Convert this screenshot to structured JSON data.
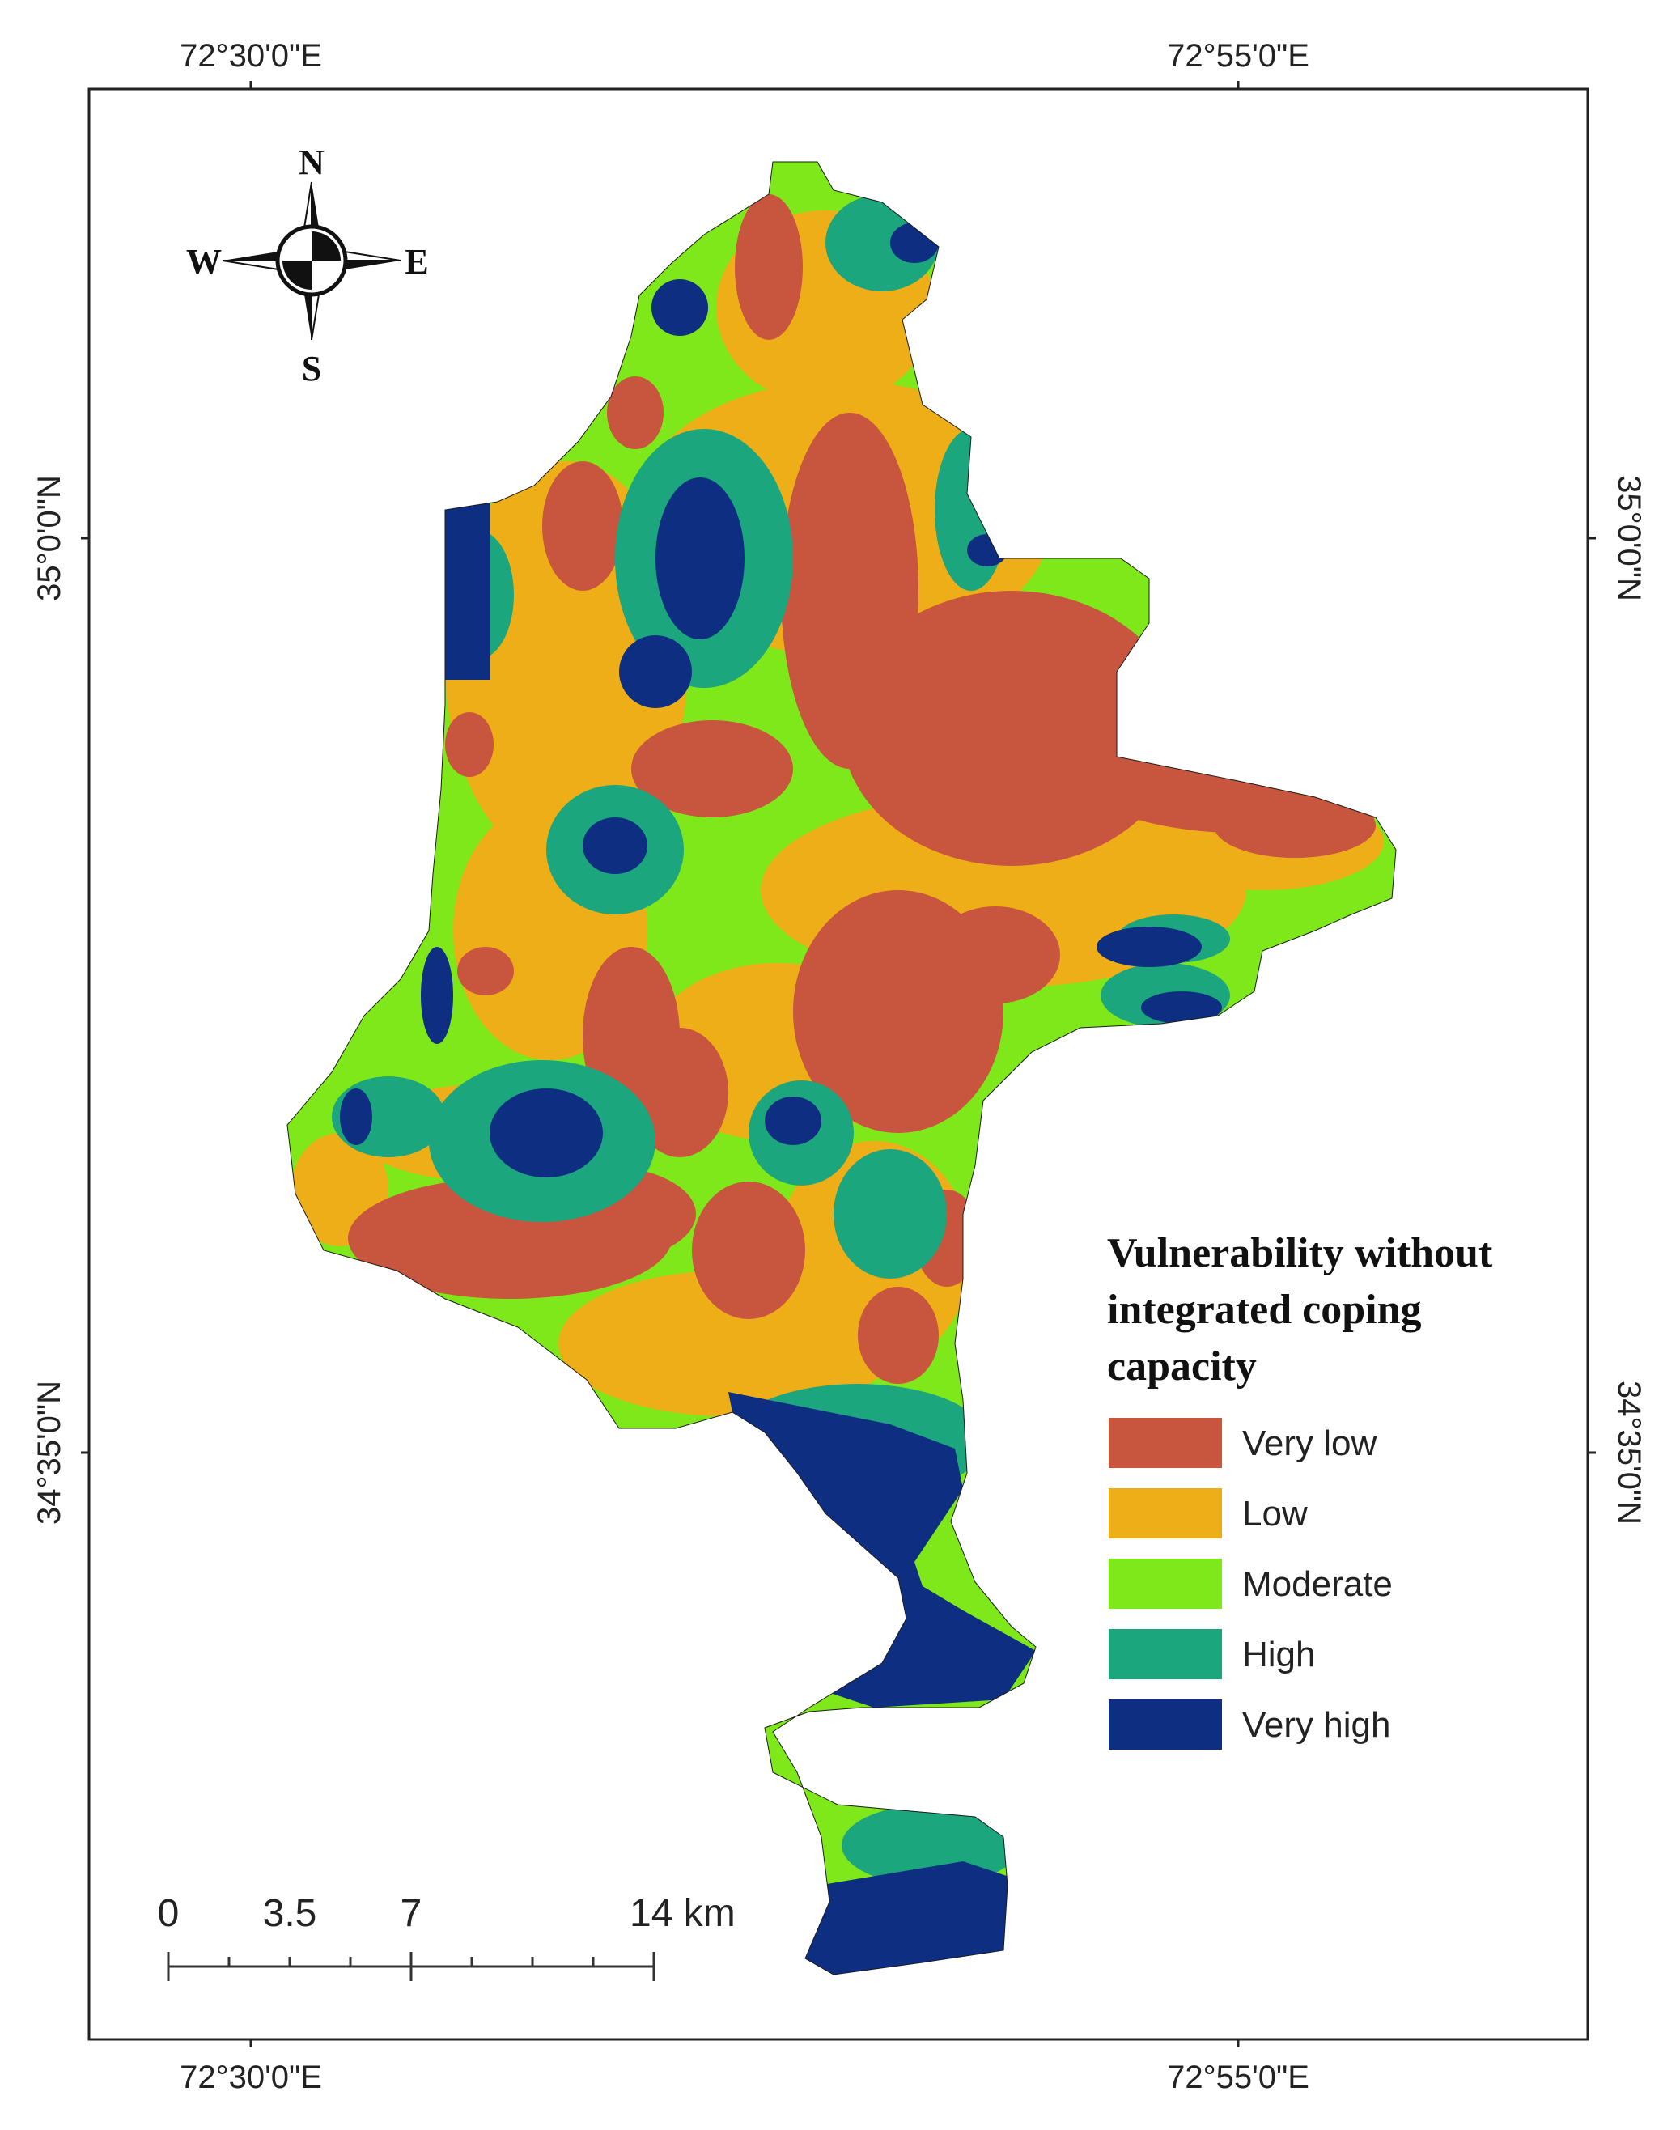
{
  "graticule": {
    "top": [
      "72°30'0\"E",
      "72°55'0\"E"
    ],
    "bottom": [
      "72°30'0\"E",
      "72°55'0\"E"
    ],
    "left": [
      "35°0'0\"N",
      "34°35'0\"N"
    ],
    "right": [
      "35°0'0\"N",
      "34°35'0\"N"
    ]
  },
  "compass": {
    "n": "N",
    "s": "S",
    "e": "E",
    "w": "W"
  },
  "legend": {
    "title_lines": [
      "Vulnerability without",
      "integrated coping",
      "capacity"
    ],
    "classes": [
      {
        "label": "Very low",
        "color": "#c8553d"
      },
      {
        "label": "Low",
        "color": "#eeae17"
      },
      {
        "label": "Moderate",
        "color": "#7fe81a"
      },
      {
        "label": "High",
        "color": "#1ba67d"
      },
      {
        "label": "Very high",
        "color": "#0e2e82"
      }
    ]
  },
  "scale_bar": {
    "labels": [
      "0",
      "3.5",
      "7",
      "14 km"
    ]
  }
}
